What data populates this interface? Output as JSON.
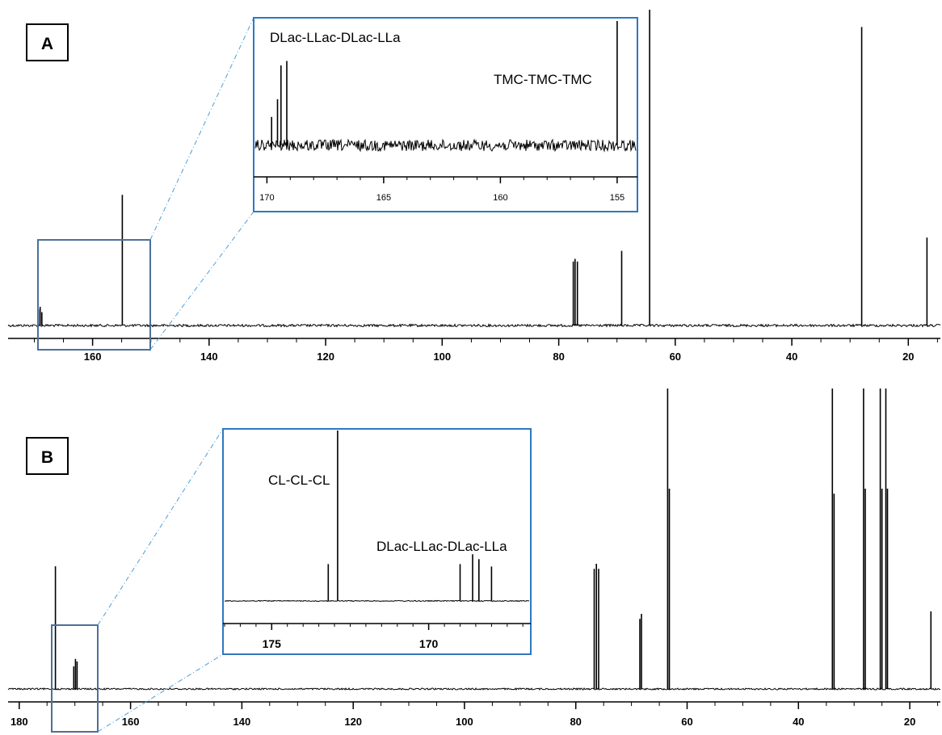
{
  "chart_data": [
    {
      "type": "line",
      "panel_label": "A",
      "xlabel": "",
      "ylabel": "",
      "x_reversed": true,
      "xlim": [
        174.5,
        14.5
      ],
      "x_ticks": [
        160,
        140,
        120,
        100,
        80,
        60,
        40,
        20
      ],
      "peaks": [
        {
          "ppm": 169.3,
          "height": 0.06
        },
        {
          "ppm": 169.0,
          "height": 0.07
        },
        {
          "ppm": 168.7,
          "height": 0.05
        },
        {
          "ppm": 154.9,
          "height": 0.49
        },
        {
          "ppm": 77.5,
          "height": 0.24
        },
        {
          "ppm": 77.2,
          "height": 0.25
        },
        {
          "ppm": 76.8,
          "height": 0.24
        },
        {
          "ppm": 69.2,
          "height": 0.28
        },
        {
          "ppm": 64.4,
          "height": 1.2
        },
        {
          "ppm": 28.0,
          "height": 1.12
        },
        {
          "ppm": 16.8,
          "height": 0.33
        }
      ],
      "inset": {
        "xlim": [
          170.5,
          154.2
        ],
        "x_ticks": [
          170,
          165,
          160,
          155
        ],
        "peaks": [
          {
            "ppm": 169.8,
            "height": 0.32
          },
          {
            "ppm": 169.55,
            "height": 0.52
          },
          {
            "ppm": 169.4,
            "height": 0.9
          },
          {
            "ppm": 169.15,
            "height": 0.95
          },
          {
            "ppm": 155.0,
            "height": 1.4
          }
        ],
        "annotations": [
          "DLac-LLac-DLac-LLa",
          "TMC-TMC-TMC"
        ]
      }
    },
    {
      "type": "line",
      "panel_label": "B",
      "xlabel": "",
      "ylabel": "",
      "x_reversed": true,
      "xlim": [
        182.0,
        14.5
      ],
      "x_ticks": [
        180,
        160,
        140,
        120,
        100,
        80,
        60,
        40,
        20
      ],
      "peaks": [
        {
          "ppm": 173.5,
          "height": 0.49
        },
        {
          "ppm": 170.2,
          "height": 0.09
        },
        {
          "ppm": 169.9,
          "height": 0.12
        },
        {
          "ppm": 169.6,
          "height": 0.11
        },
        {
          "ppm": 76.7,
          "height": 0.48
        },
        {
          "ppm": 76.3,
          "height": 0.5
        },
        {
          "ppm": 75.9,
          "height": 0.48
        },
        {
          "ppm": 68.5,
          "height": 0.28
        },
        {
          "ppm": 68.2,
          "height": 0.3
        },
        {
          "ppm": 63.5,
          "height": 1.2
        },
        {
          "ppm": 63.2,
          "height": 0.8
        },
        {
          "ppm": 33.9,
          "height": 1.2
        },
        {
          "ppm": 33.6,
          "height": 0.78
        },
        {
          "ppm": 28.3,
          "height": 1.2
        },
        {
          "ppm": 28.0,
          "height": 0.8
        },
        {
          "ppm": 25.3,
          "height": 1.2
        },
        {
          "ppm": 25.0,
          "height": 0.8
        },
        {
          "ppm": 24.3,
          "height": 1.2
        },
        {
          "ppm": 24.0,
          "height": 0.8
        },
        {
          "ppm": 16.2,
          "height": 0.31
        }
      ],
      "inset": {
        "xlim": [
          176.5,
          166.8
        ],
        "x_ticks": [
          175,
          170
        ],
        "peaks": [
          {
            "ppm": 173.2,
            "height": 0.3
          },
          {
            "ppm": 172.9,
            "height": 1.4
          },
          {
            "ppm": 169.0,
            "height": 0.3
          },
          {
            "ppm": 168.6,
            "height": 0.38
          },
          {
            "ppm": 168.4,
            "height": 0.34
          },
          {
            "ppm": 168.0,
            "height": 0.28
          }
        ],
        "annotations": [
          "CL-CL-CL",
          "DLac-LLac-DLac-LLa"
        ]
      }
    }
  ],
  "colors": {
    "spectrum": "#000000",
    "inset_border": "#2f78c0",
    "zoom_box": "#4d6f98",
    "zoom_lines": "#4d9fd8"
  }
}
